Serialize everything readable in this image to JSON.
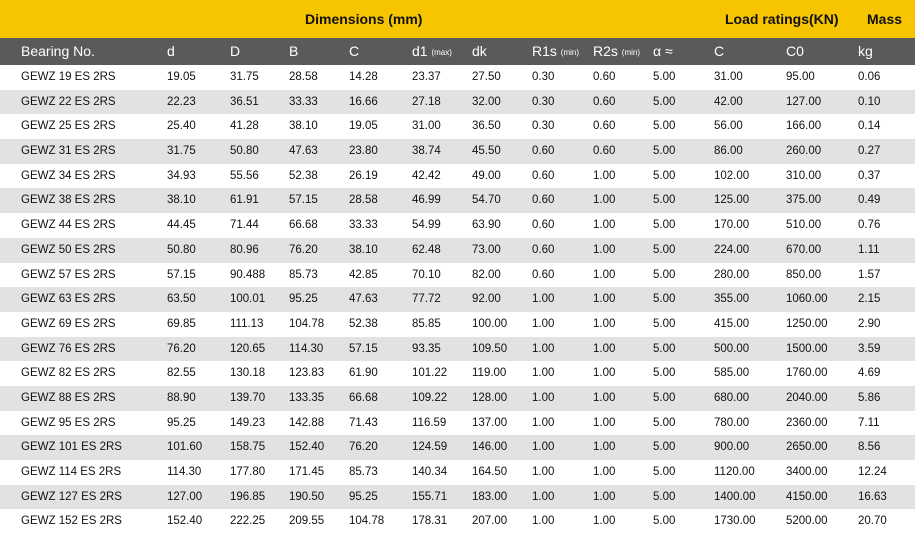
{
  "top": {
    "dimensions": "Dimensions (mm)",
    "load_ratings": "Load ratings(KN)",
    "mass": "Mass"
  },
  "header": [
    {
      "label": "Bearing No.",
      "sub": ""
    },
    {
      "label": "d",
      "sub": ""
    },
    {
      "label": "D",
      "sub": ""
    },
    {
      "label": "B",
      "sub": ""
    },
    {
      "label": "C",
      "sub": ""
    },
    {
      "label": "d1",
      "sub": "(max)"
    },
    {
      "label": "dk",
      "sub": ""
    },
    {
      "label": "R1s",
      "sub": "(min)"
    },
    {
      "label": "R2s",
      "sub": "(min)"
    },
    {
      "label": "α  ≈",
      "sub": ""
    },
    {
      "label": "C",
      "sub": ""
    },
    {
      "label": "C0",
      "sub": ""
    },
    {
      "label": "kg",
      "sub": ""
    }
  ],
  "rows": [
    [
      "GEWZ 19 ES 2RS",
      "19.05",
      "31.75",
      "28.58",
      "14.28",
      "23.37",
      "27.50",
      "0.30",
      "0.60",
      "5.00",
      "31.00",
      "95.00",
      "0.06"
    ],
    [
      "GEWZ 22 ES 2RS",
      "22.23",
      "36.51",
      "33.33",
      "16.66",
      "27.18",
      "32.00",
      "0.30",
      "0.60",
      "5.00",
      "42.00",
      "127.00",
      "0.10"
    ],
    [
      "GEWZ 25 ES 2RS",
      "25.40",
      "41.28",
      "38.10",
      "19.05",
      "31.00",
      "36.50",
      "0.30",
      "0.60",
      "5.00",
      "56.00",
      "166.00",
      "0.14"
    ],
    [
      "GEWZ 31 ES 2RS",
      "31.75",
      "50.80",
      "47.63",
      "23.80",
      "38.74",
      "45.50",
      "0.60",
      "0.60",
      "5.00",
      "86.00",
      "260.00",
      "0.27"
    ],
    [
      "GEWZ 34 ES 2RS",
      "34.93",
      "55.56",
      "52.38",
      "26.19",
      "42.42",
      "49.00",
      "0.60",
      "1.00",
      "5.00",
      "102.00",
      "310.00",
      "0.37"
    ],
    [
      "GEWZ 38 ES 2RS",
      "38.10",
      "61.91",
      "57.15",
      "28.58",
      "46.99",
      "54.70",
      "0.60",
      "1.00",
      "5.00",
      "125.00",
      "375.00",
      "0.49"
    ],
    [
      "GEWZ 44 ES 2RS",
      "44.45",
      "71.44",
      "66.68",
      "33.33",
      "54.99",
      "63.90",
      "0.60",
      "1.00",
      "5.00",
      "170.00",
      "510.00",
      "0.76"
    ],
    [
      "GEWZ 50 ES 2RS",
      "50.80",
      "80.96",
      "76.20",
      "38.10",
      "62.48",
      "73.00",
      "0.60",
      "1.00",
      "5.00",
      "224.00",
      "670.00",
      "1.11"
    ],
    [
      "GEWZ 57 ES 2RS",
      "57.15",
      " 90.488",
      "85.73",
      "42.85",
      "70.10",
      "82.00",
      "0.60",
      "1.00",
      "5.00",
      "280.00",
      "850.00",
      "1.57"
    ],
    [
      "GEWZ 63 ES 2RS",
      "63.50",
      "100.01",
      "95.25",
      "47.63",
      "77.72",
      "92.00",
      "1.00",
      "1.00",
      "5.00",
      "355.00",
      "1060.00",
      "2.15"
    ],
    [
      "GEWZ 69 ES 2RS",
      "69.85",
      "111.13",
      "104.78",
      "52.38",
      "85.85",
      "100.00",
      "1.00",
      "1.00",
      "5.00",
      "415.00",
      "1250.00",
      "2.90"
    ],
    [
      "GEWZ 76 ES 2RS",
      "76.20",
      "120.65",
      "114.30",
      "57.15",
      "93.35",
      "109.50",
      "1.00",
      "1.00",
      "5.00",
      "500.00",
      "1500.00",
      "3.59"
    ],
    [
      "GEWZ 82 ES 2RS",
      "82.55",
      "130.18",
      "123.83",
      "61.90",
      "101.22",
      "119.00",
      "1.00",
      "1.00",
      "5.00",
      "585.00",
      "1760.00",
      "4.69"
    ],
    [
      "GEWZ 88 ES 2RS",
      "88.90",
      "139.70",
      "133.35",
      "66.68",
      "109.22",
      "128.00",
      "1.00",
      "1.00",
      "5.00",
      "680.00",
      "2040.00",
      "5.86"
    ],
    [
      "GEWZ 95 ES 2RS",
      "95.25",
      "149.23",
      "142.88",
      "71.43",
      "116.59",
      "137.00",
      "1.00",
      "1.00",
      "5.00",
      "780.00",
      "2360.00",
      "7.11"
    ],
    [
      "GEWZ 101 ES 2RS",
      "101.60",
      "158.75",
      "152.40",
      "76.20",
      "124.59",
      "146.00",
      "1.00",
      "1.00",
      "5.00",
      "900.00",
      "2650.00",
      "8.56"
    ],
    [
      "GEWZ 114 ES 2RS",
      "114.30",
      "177.80",
      "171.45",
      "85.73",
      "140.34",
      "164.50",
      "1.00",
      "1.00",
      "5.00",
      "1120.00",
      "3400.00",
      "12.24"
    ],
    [
      "GEWZ 127 ES 2RS",
      "127.00",
      "196.85",
      "190.50",
      "95.25",
      "155.71",
      "183.00",
      "1.00",
      "1.00",
      "5.00",
      "1400.00",
      "4150.00",
      "16.63"
    ],
    [
      "GEWZ 152 ES 2RS",
      "152.40",
      "222.25",
      "209.55",
      "104.78",
      "178.31",
      "207.00",
      "1.00",
      "1.00",
      "5.00",
      "1730.00",
      "5200.00",
      "20.70"
    ]
  ],
  "colors": {
    "top_band": "#f7c400",
    "header_band": "#5a5a5a",
    "stripe": "#e2e2e2"
  }
}
